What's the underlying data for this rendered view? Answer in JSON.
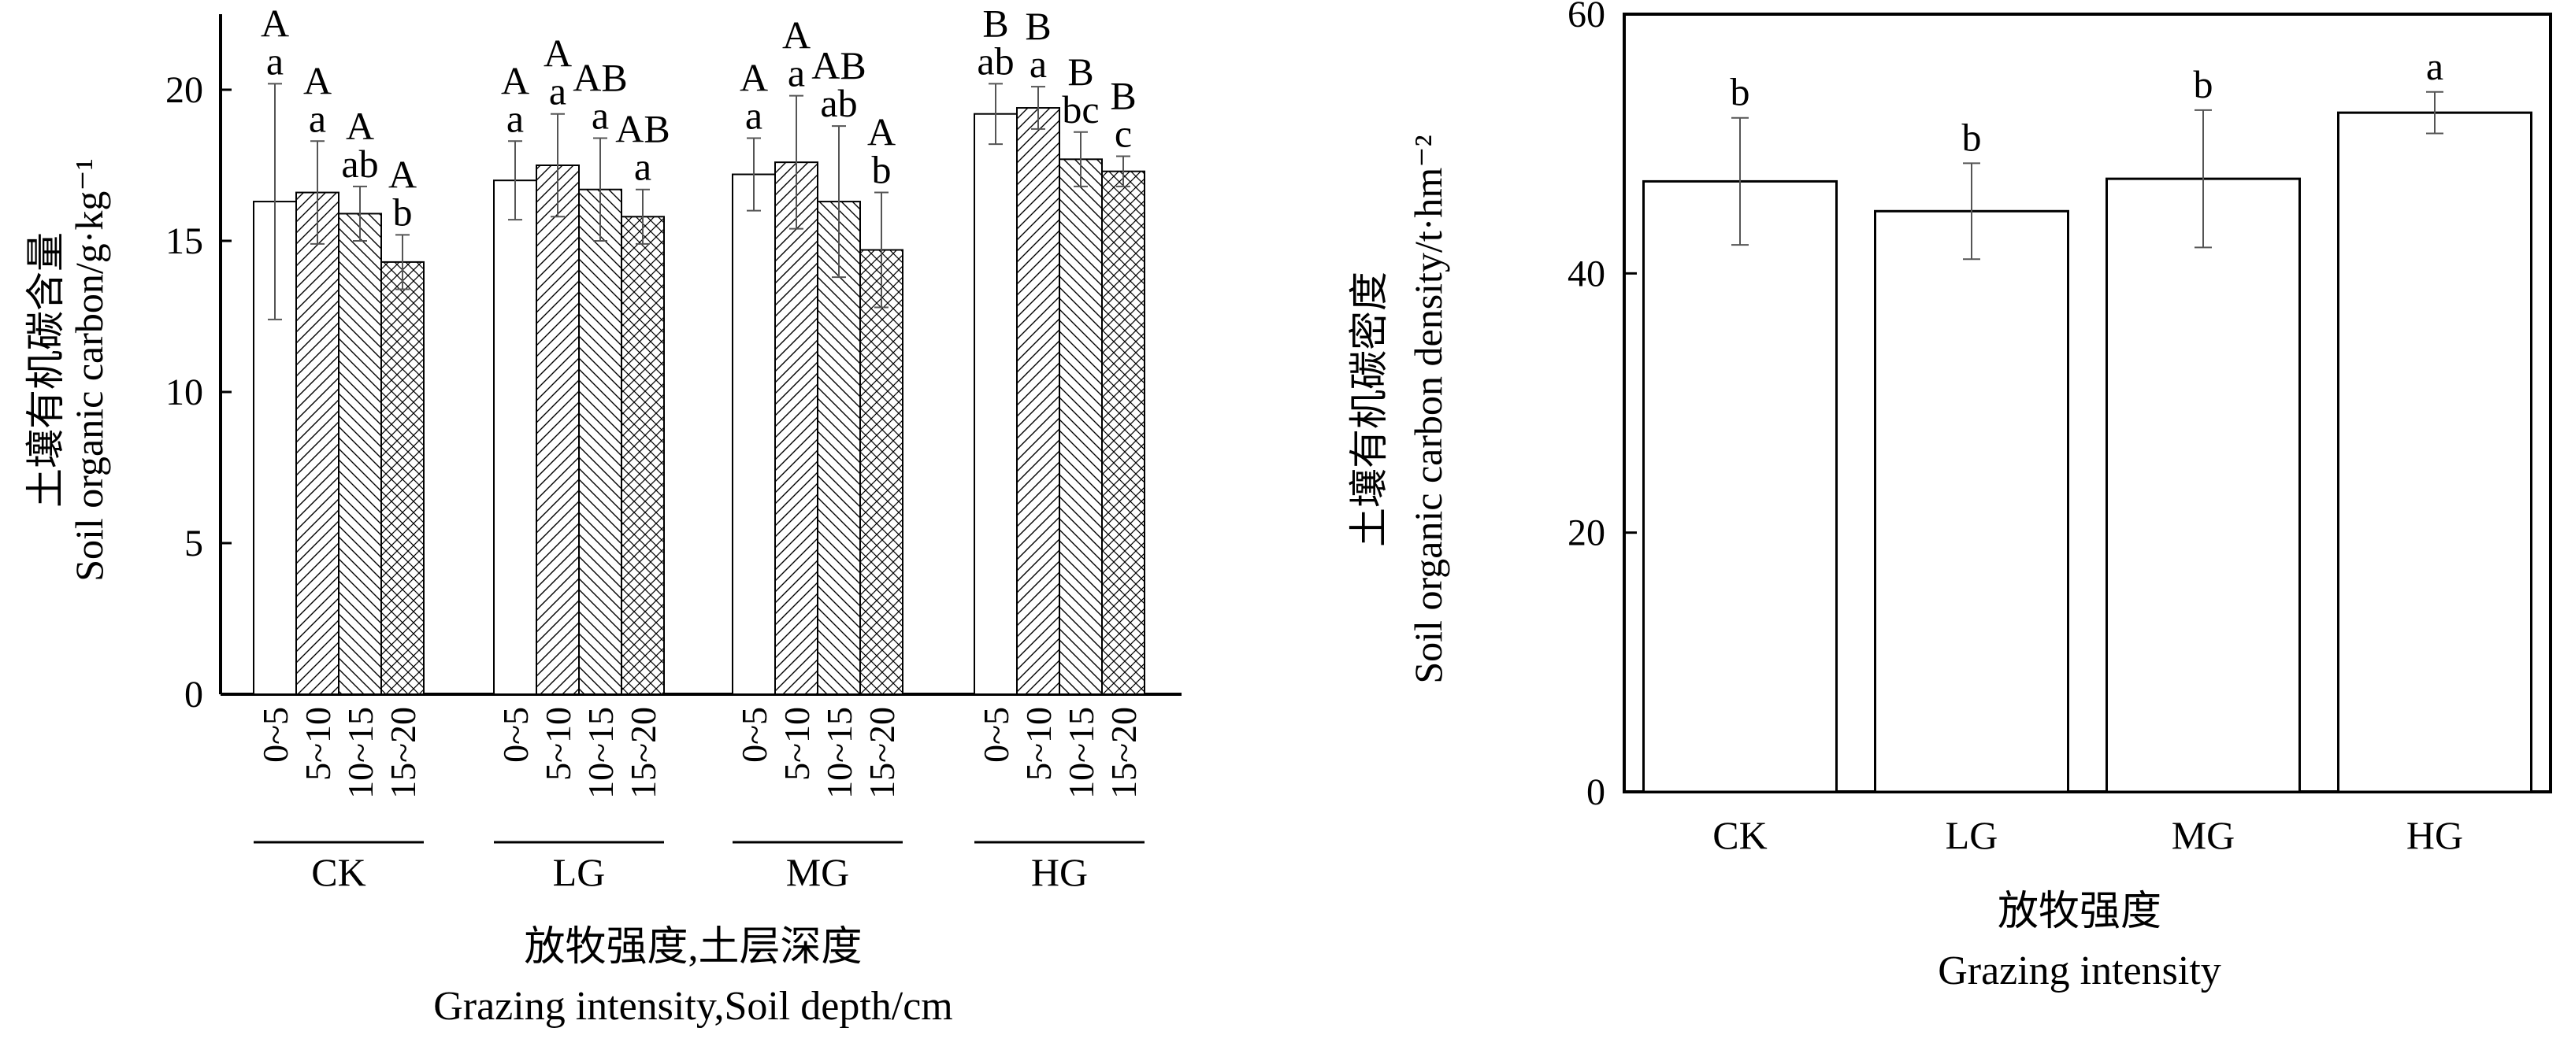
{
  "colors": {
    "axis": "#000000",
    "bar_fill": "#ffffff",
    "bar_stroke": "#000000",
    "error_bar": "#555555"
  },
  "chart_data": [
    {
      "type": "bar",
      "ylabel_cn": "土壤有机碳含量",
      "ylabel_en": "Soil organic carbon/g·kg⁻¹",
      "xlabel_cn": "放牧强度,土层深度",
      "xlabel_en": "Grazing intensity,Soil depth/cm",
      "ylim": [
        0,
        22.5
      ],
      "yticks": [
        0,
        5,
        10,
        15,
        20
      ],
      "groups": [
        "CK",
        "LG",
        "MG",
        "HG"
      ],
      "depths": [
        "0~5",
        "5~10",
        "10~15",
        "15~20"
      ],
      "series": [
        {
          "depth": "0~5",
          "patterns": [
            "none"
          ],
          "values": [
            16.3,
            17.0,
            17.2,
            19.2
          ],
          "errors": [
            3.9,
            1.3,
            1.2,
            1.0
          ]
        },
        {
          "depth": "5~10",
          "values": [
            16.6,
            17.5,
            17.6,
            19.4
          ],
          "errors": [
            1.7,
            1.7,
            2.2,
            0.7
          ]
        },
        {
          "depth": "10~15",
          "values": [
            15.9,
            16.7,
            16.3,
            17.7
          ],
          "errors": [
            0.9,
            1.7,
            2.5,
            0.9
          ]
        },
        {
          "depth": "15~20",
          "values": [
            14.3,
            15.8,
            14.7,
            17.3
          ],
          "errors": [
            0.9,
            0.9,
            1.9,
            0.5
          ]
        }
      ],
      "upper_letters": [
        [
          "A",
          "A",
          "A",
          "A"
        ],
        [
          "A",
          "A",
          "AB",
          "AB"
        ],
        [
          "A",
          "A",
          "AB",
          "A"
        ],
        [
          "B",
          "B",
          "B",
          "B"
        ]
      ],
      "lower_letters": [
        [
          "a",
          "a",
          "ab",
          "b"
        ],
        [
          "a",
          "a",
          "a",
          "a"
        ],
        [
          "a",
          "a",
          "ab",
          "b"
        ],
        [
          "ab",
          "a",
          "bc",
          "c"
        ]
      ]
    },
    {
      "type": "bar",
      "ylabel_cn": "土壤有机碳密度",
      "ylabel_en": "Soil organic carbon density/t·hm⁻²",
      "xlabel_cn": "放牧强度",
      "xlabel_en": "Grazing intensity",
      "ylim": [
        0,
        60
      ],
      "yticks": [
        0,
        20,
        40,
        60
      ],
      "categories": [
        "CK",
        "LG",
        "MG",
        "HG"
      ],
      "values": [
        47.1,
        44.8,
        47.3,
        52.4
      ],
      "errors": [
        4.9,
        3.7,
        5.3,
        1.6
      ],
      "letters": [
        "b",
        "b",
        "b",
        "a"
      ]
    }
  ]
}
